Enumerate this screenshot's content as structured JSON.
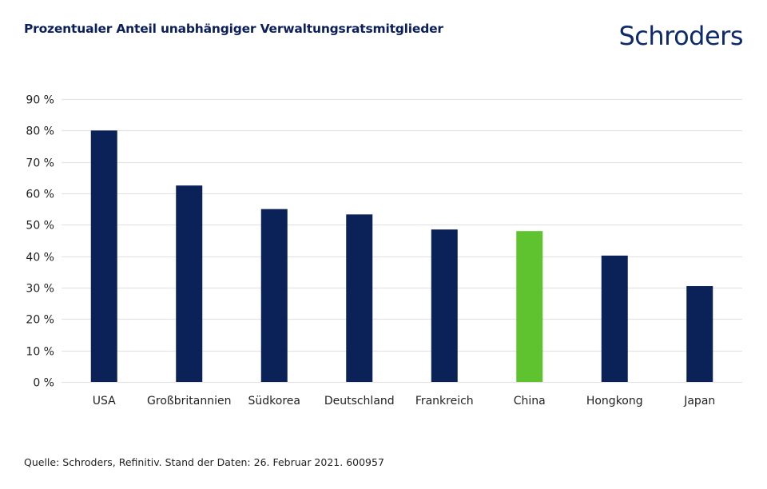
{
  "header": {
    "title": "Prozentualer Anteil unabhängiger Verwaltungsratsmitglieder",
    "logo": "Schroders"
  },
  "footer": {
    "source": "Quelle: Schroders, Refinitiv. Stand der Daten: 26. Februar 2021. 600957"
  },
  "colors": {
    "primary_bar": "#0b2258",
    "highlight_bar": "#5fc22f",
    "gridline": "#e3e3e3",
    "title": "#0b1f5c"
  },
  "chart_data": {
    "type": "bar",
    "title": "Prozentualer Anteil unabhängiger Verwaltungsratsmitglieder",
    "xlabel": "",
    "ylabel": "",
    "categories": [
      "USA",
      "Großbritannien",
      "Südkorea",
      "Deutschland",
      "Frankreich",
      "China",
      "Hongkong",
      "Japan"
    ],
    "values": [
      80,
      62.5,
      55,
      53.3,
      48.5,
      48,
      40.2,
      30.5
    ],
    "highlight": [
      "China"
    ],
    "unit": "%",
    "ylim": [
      0,
      90
    ],
    "yticks": [
      0,
      10,
      20,
      30,
      40,
      50,
      60,
      70,
      80,
      90
    ],
    "ytick_labels": [
      "0 %",
      "10 %",
      "20 %",
      "30 %",
      "40 %",
      "50 %",
      "60 %",
      "70 %",
      "80 %",
      "90 %"
    ],
    "grid": true,
    "legend": "none"
  }
}
